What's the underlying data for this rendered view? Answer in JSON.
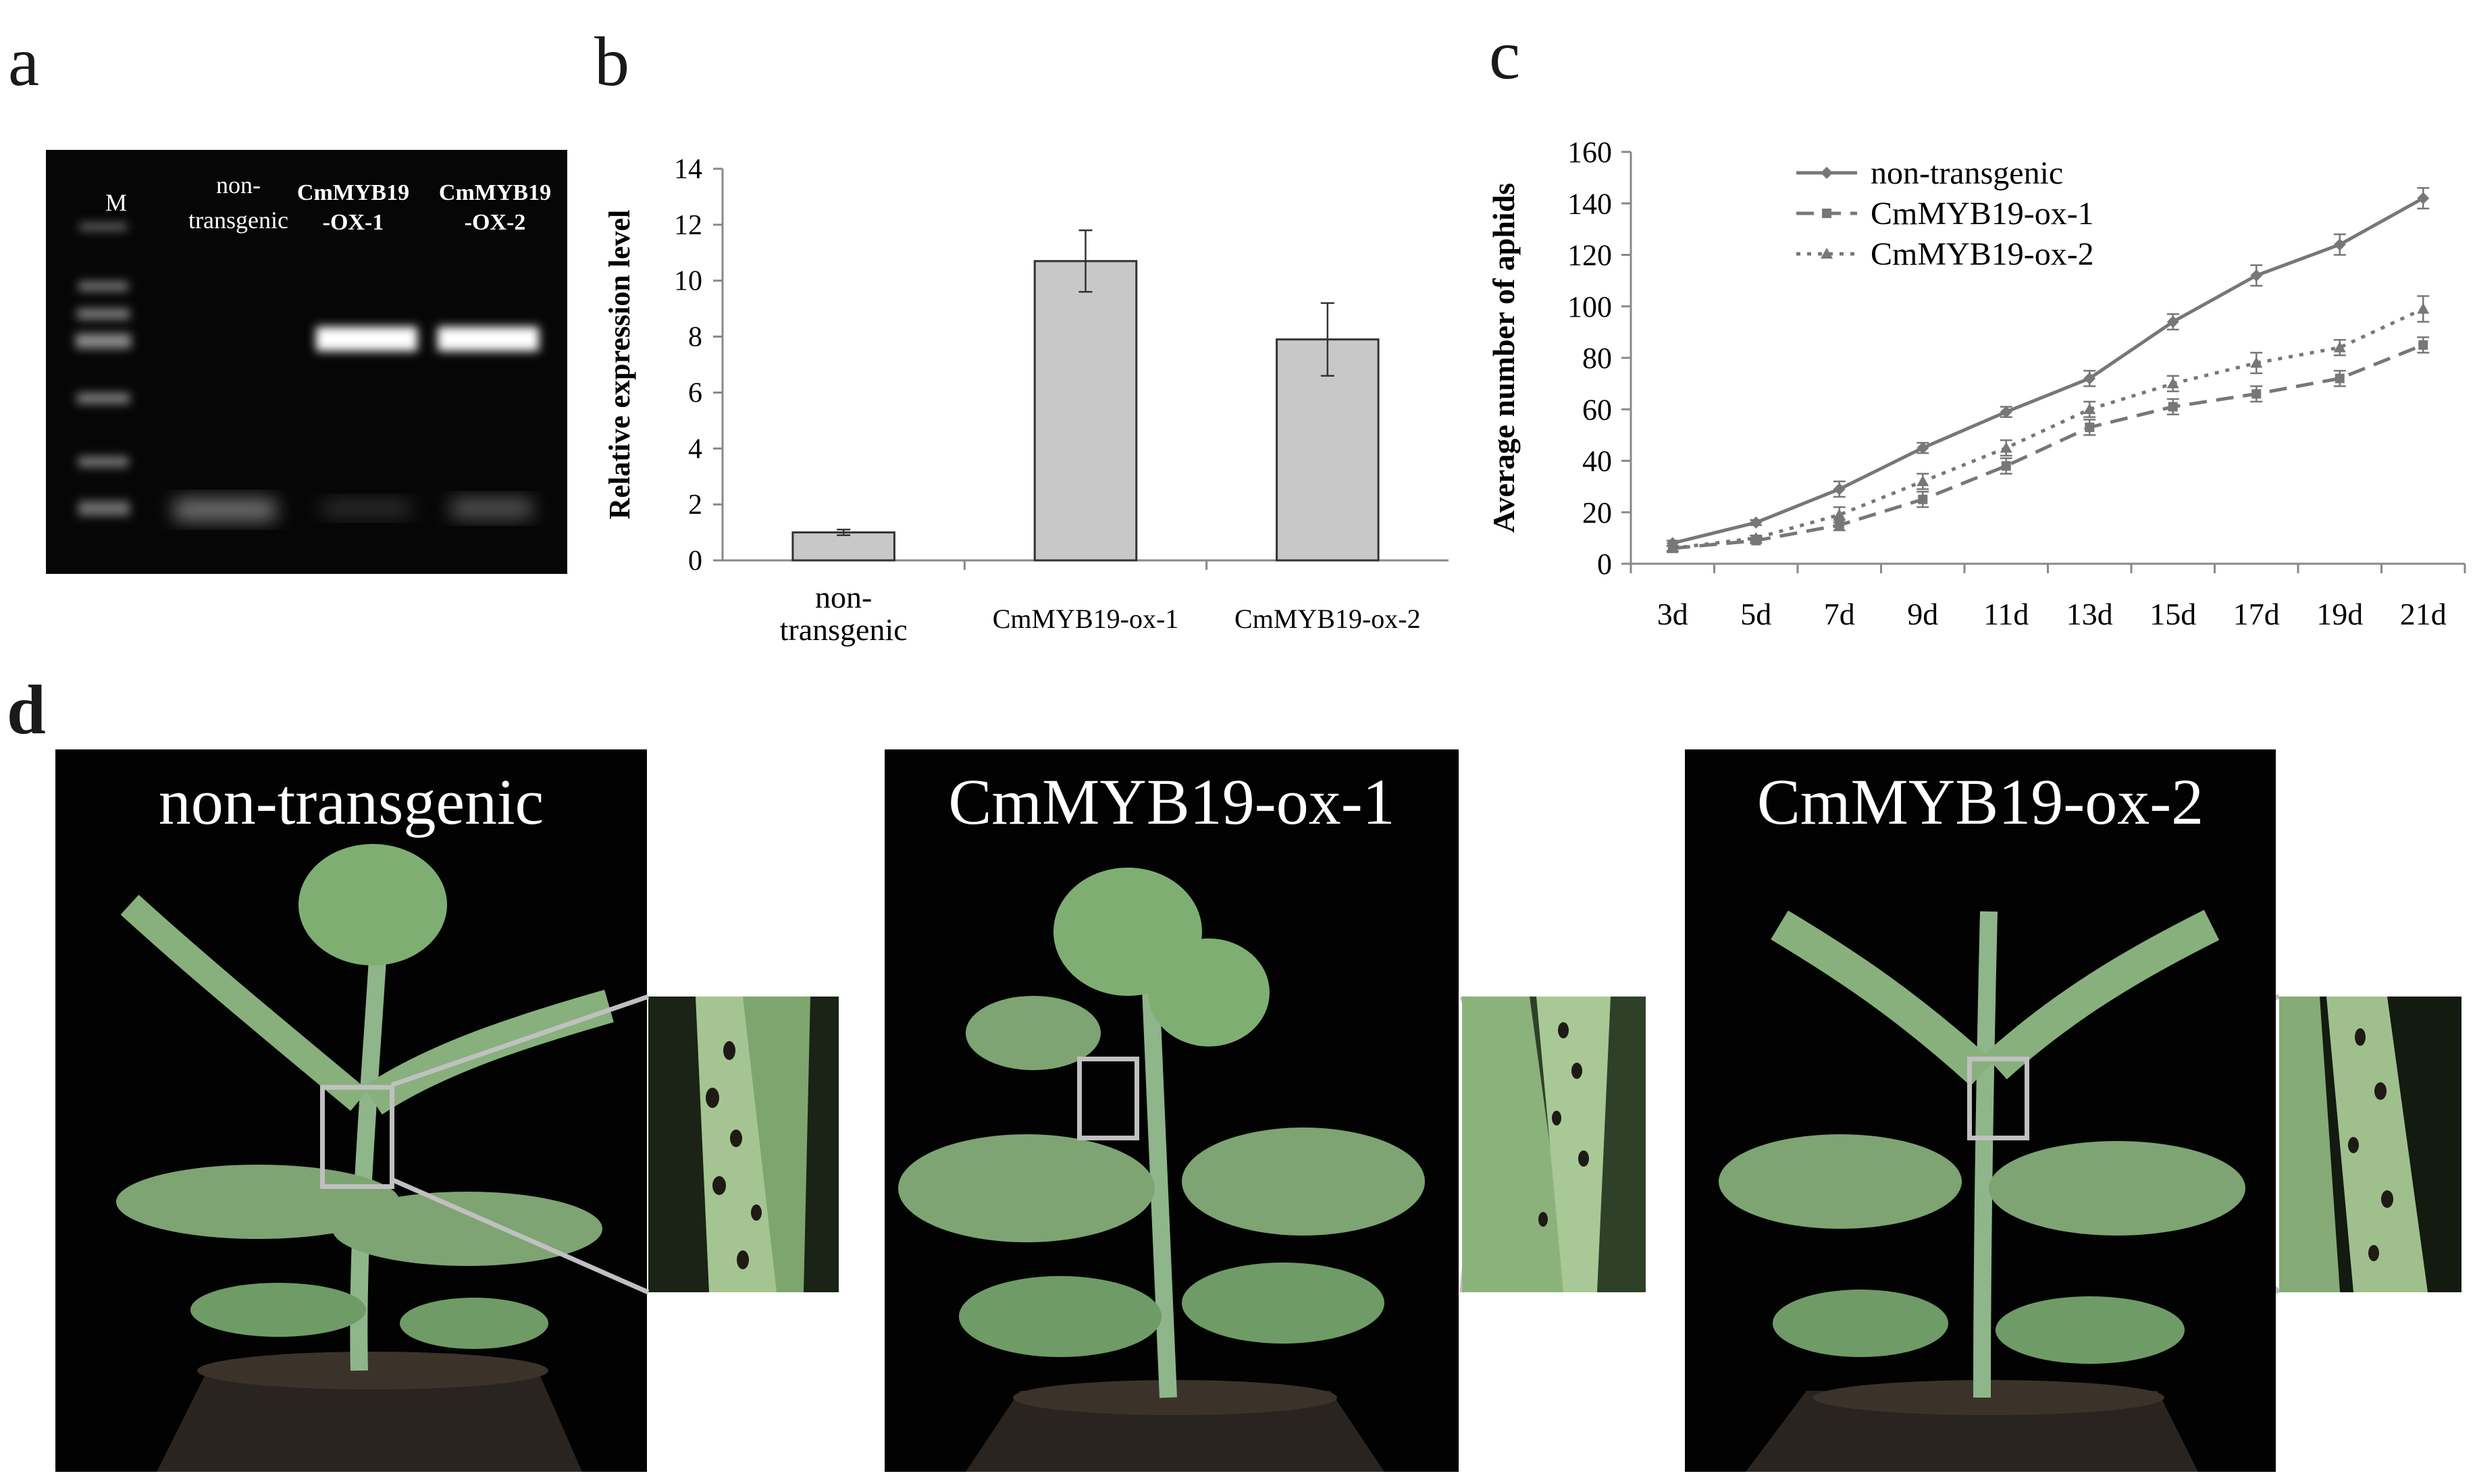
{
  "panels": {
    "a": "a",
    "b": "b",
    "c": "c",
    "d": "d"
  },
  "gel": {
    "lanes": [
      {
        "label_line1": "M",
        "label_line2": ""
      },
      {
        "label_line1": "non-",
        "label_line2": "transgenic"
      },
      {
        "label_line1": "CmMYB19",
        "label_line2": "-OX-1"
      },
      {
        "label_line1": "CmMYB19",
        "label_line2": "-OX-2"
      }
    ]
  },
  "chart_data": [
    {
      "type": "bar",
      "ylabel": "Relative expression level",
      "ylim": [
        0,
        14
      ],
      "yticks": [
        0,
        2,
        4,
        6,
        8,
        10,
        12,
        14
      ],
      "categories": [
        [
          "non-",
          "transgenic"
        ],
        [
          "CmMYB19-ox-1"
        ],
        [
          "CmMYB19-ox-2"
        ]
      ],
      "values": [
        1.0,
        10.7,
        7.9
      ],
      "errors": [
        0.1,
        1.1,
        1.3
      ],
      "bar_color": "#c8c8c8"
    },
    {
      "type": "line",
      "ylabel": "Average number of aphids",
      "ylim": [
        0,
        160
      ],
      "yticks": [
        0,
        20,
        40,
        60,
        80,
        100,
        120,
        140,
        160
      ],
      "x": [
        "3d",
        "5d",
        "7d",
        "9d",
        "11d",
        "13d",
        "15d",
        "17d",
        "19d",
        "21d"
      ],
      "series": [
        {
          "name": "non-transgenic",
          "values": [
            8,
            16,
            29,
            45,
            59,
            72,
            94,
            112,
            124,
            142
          ],
          "errors": [
            1,
            1,
            3,
            2,
            2,
            3,
            3,
            4,
            4,
            4
          ],
          "dash": "solid",
          "marker": "diamond"
        },
        {
          "name": "CmMYB19-ox-1",
          "values": [
            6,
            9,
            15,
            25,
            38,
            53,
            61,
            66,
            72,
            85
          ],
          "errors": [
            1,
            1,
            2,
            3,
            3,
            3,
            3,
            3,
            3,
            3
          ],
          "dash": "dashed",
          "marker": "square"
        },
        {
          "name": "CmMYB19-ox-2",
          "values": [
            6,
            10,
            19,
            32,
            45,
            60,
            70,
            78,
            84,
            99
          ],
          "errors": [
            1,
            1,
            3,
            3,
            3,
            3,
            3,
            4,
            3,
            5
          ],
          "dash": "dotted",
          "marker": "triangle"
        }
      ]
    }
  ],
  "photos": [
    {
      "title": "non-transgenic"
    },
    {
      "title": "CmMYB19-ox-1"
    },
    {
      "title": "CmMYB19-ox-2"
    }
  ]
}
